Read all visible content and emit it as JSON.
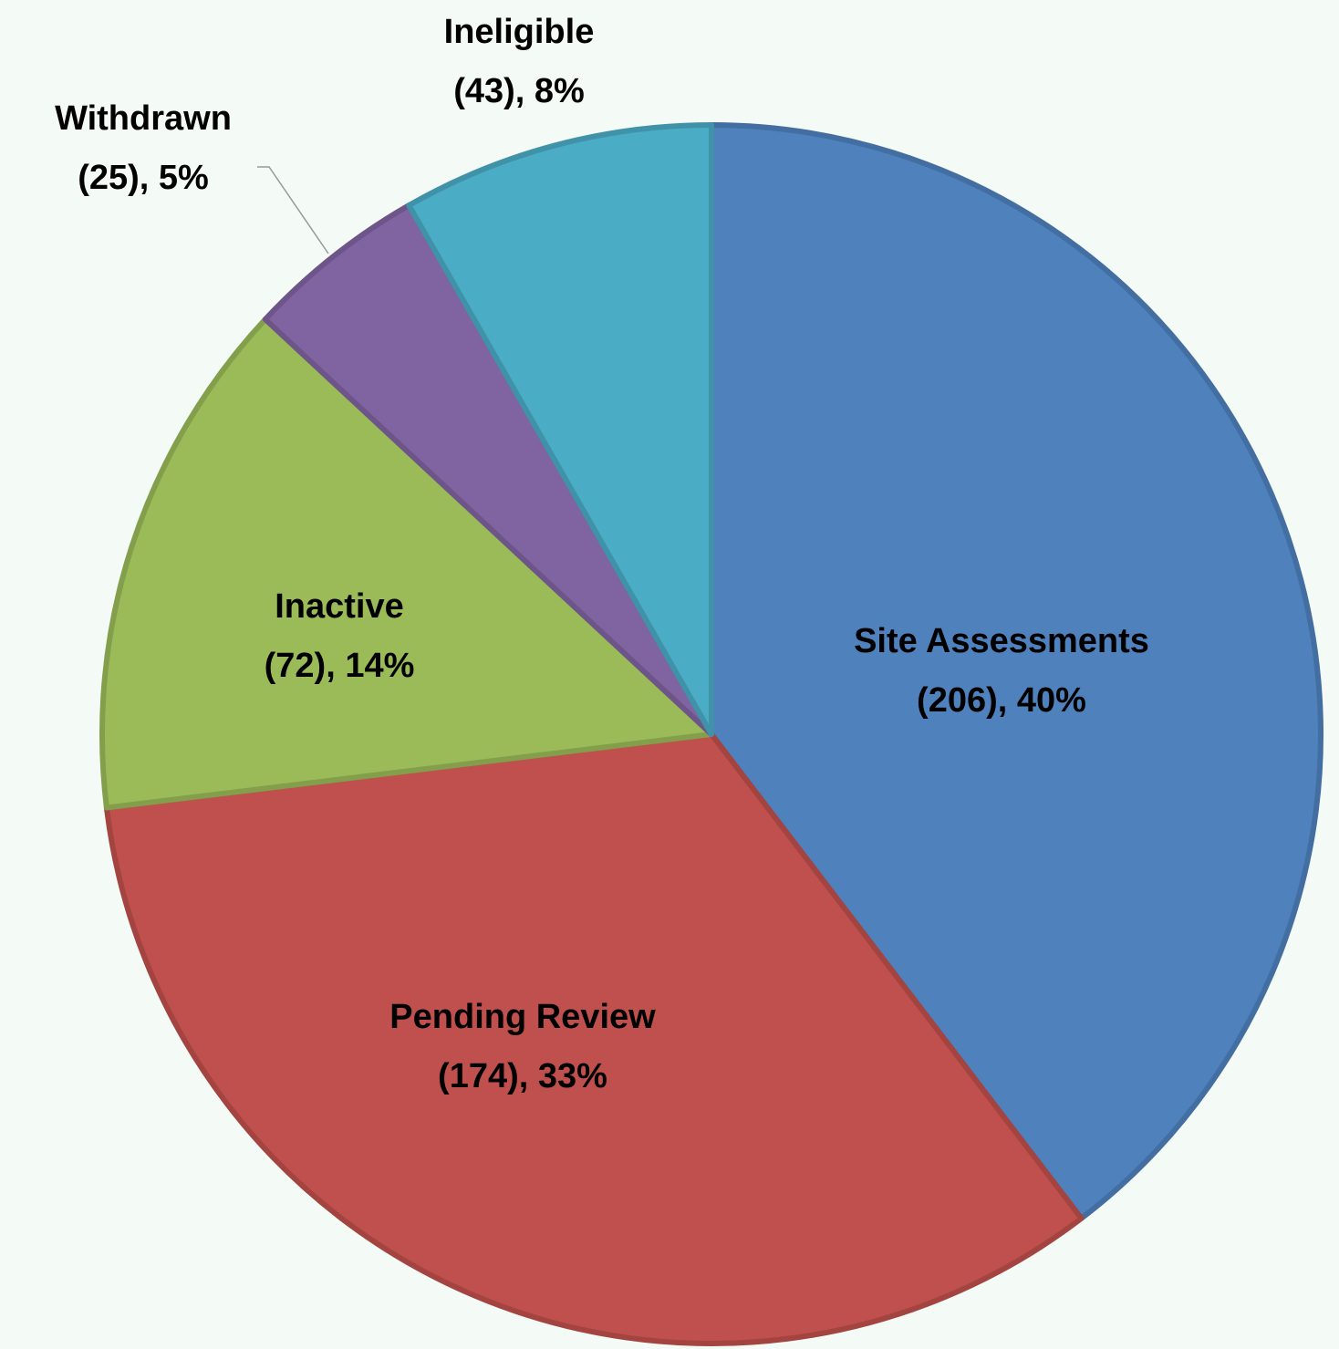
{
  "chart_data": {
    "type": "pie",
    "categories": [
      "Site Assessments",
      "Pending Review",
      "Inactive",
      "Withdrawn",
      "Ineligible"
    ],
    "values": [
      206,
      174,
      72,
      25,
      43
    ],
    "value_labels": [
      "(206), 40%",
      "(174), 33%",
      "(72), 14%",
      "(25), 5%",
      "(43), 8%"
    ],
    "colors": [
      "#4f81bd",
      "#c0504d",
      "#9bbb59",
      "#8064a2",
      "#4bacc6"
    ]
  }
}
